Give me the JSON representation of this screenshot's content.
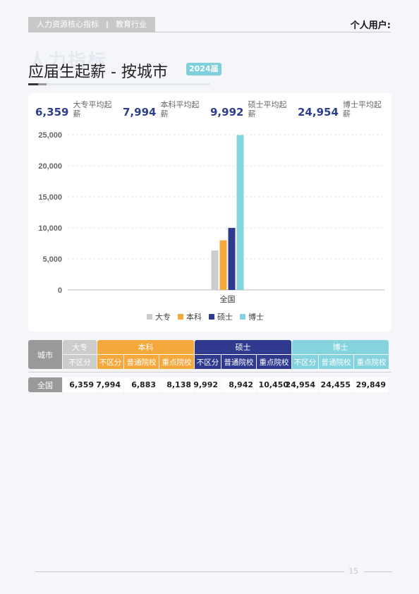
{
  "header": {
    "tag_left": "人力资源核心指标",
    "tag_sep": "|",
    "tag_right": "教育行业",
    "user": "个人用户:"
  },
  "watermark": "人力指标",
  "title": {
    "text": "应届生起薪 - 按城市",
    "badge": "2024届"
  },
  "stats": [
    {
      "value": "6,359",
      "label": "大专平均起薪"
    },
    {
      "value": "7,994",
      "label": "本科平均起薪"
    },
    {
      "value": "9,992",
      "label": "硕士平均起薪"
    },
    {
      "value": "24,954",
      "label": "博士平均起薪"
    }
  ],
  "colors": {
    "dazhuan": "#cccccc",
    "benke": "#f5a83c",
    "shuoshi": "#2f3a8f",
    "boshi": "#85d3de",
    "city_header": "#999999"
  },
  "chart_data": {
    "type": "bar",
    "categories": [
      "全国"
    ],
    "series": [
      {
        "name": "大专",
        "values": [
          6359
        ]
      },
      {
        "name": "本科",
        "values": [
          7994
        ]
      },
      {
        "name": "硕士",
        "values": [
          9992
        ]
      },
      {
        "name": "博士",
        "values": [
          24954
        ]
      }
    ],
    "yticks": [
      "0",
      "5,000",
      "10,000",
      "15,000",
      "20,000",
      "25,000"
    ],
    "ylim": [
      0,
      25000
    ],
    "grid": true,
    "legend_position": "bottom"
  },
  "table": {
    "city_header": "城市",
    "groups": [
      "大专",
      "本科",
      "硕士",
      "博士"
    ],
    "subheaders": [
      "不区分",
      "不区分",
      "普通院校",
      "重点院校",
      "不区分",
      "普通院校",
      "重点院校",
      "不区分",
      "普通院校",
      "重点院校"
    ],
    "rows": [
      {
        "city": "全国",
        "values": [
          "6,359",
          "7,994",
          "6,883",
          "8,138",
          "9,992",
          "8,942",
          "10,450",
          "24,954",
          "24,455",
          "29,849"
        ]
      }
    ]
  },
  "footer": {
    "page": "15"
  }
}
